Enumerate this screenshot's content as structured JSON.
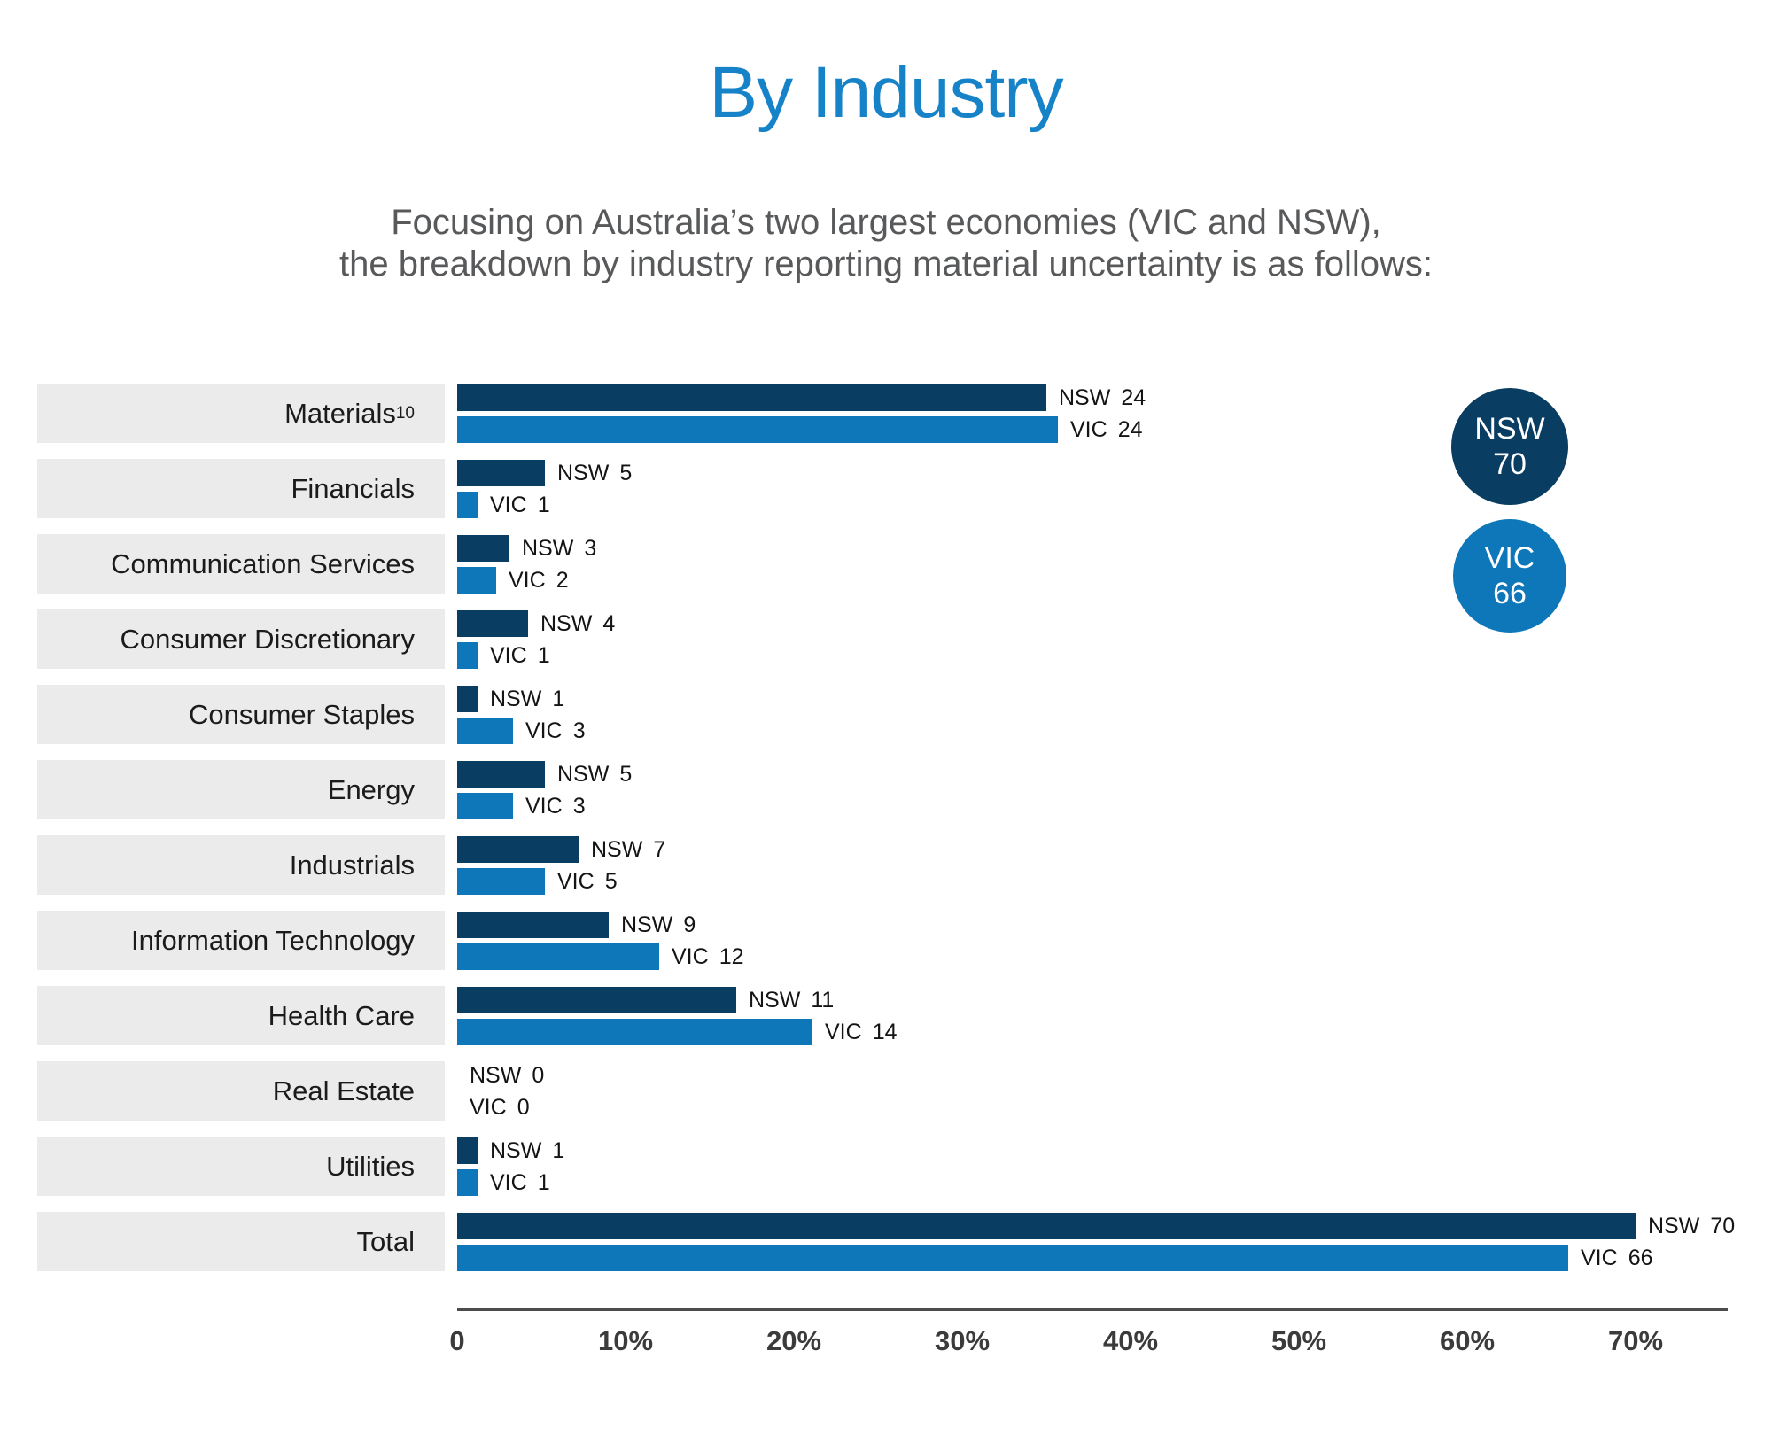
{
  "title": "By Industry",
  "subtitle_line1": "Focusing on Australia’s two largest economies (VIC and NSW),",
  "subtitle_line2": "the breakdown by industry reporting material uncertainty is as follows:",
  "legend": {
    "nsw_label": "NSW",
    "nsw_value": "70",
    "vic_label": "VIC",
    "vic_value": "66"
  },
  "colors": {
    "title_blue": "#1682c8",
    "nsw_navy": "#0a3d62",
    "vic_blue": "#0e77b9",
    "label_box_gray": "#ebebeb",
    "subtitle_gray": "#58595b",
    "axis_gray": "#4c4c4c"
  },
  "chart_data": {
    "type": "bar",
    "orientation": "horizontal",
    "title": "By Industry",
    "xlabel": "",
    "ylabel": "",
    "xlim": [
      0,
      70
    ],
    "x_ticks": [
      "0",
      "10%",
      "20%",
      "30%",
      "40%",
      "50%",
      "60%",
      "70%"
    ],
    "grid": false,
    "legend_position": "right",
    "series_names": [
      "NSW",
      "VIC"
    ],
    "state_totals": {
      "NSW": 70,
      "VIC": 66
    },
    "rows": [
      {
        "label": "Materials",
        "sup": "10",
        "nsw": 24,
        "vic": 24,
        "nsw_bar_pct": 35.0,
        "vic_bar_pct": 35.7
      },
      {
        "label": "Financials",
        "sup": "",
        "nsw": 5,
        "vic": 1,
        "nsw_bar_pct": 5.2,
        "vic_bar_pct": 1.2
      },
      {
        "label": "Communication Services",
        "sup": "",
        "nsw": 3,
        "vic": 2,
        "nsw_bar_pct": 3.1,
        "vic_bar_pct": 2.3
      },
      {
        "label": "Consumer Discretionary",
        "sup": "",
        "nsw": 4,
        "vic": 1,
        "nsw_bar_pct": 4.2,
        "vic_bar_pct": 1.2
      },
      {
        "label": "Consumer Staples",
        "sup": "",
        "nsw": 1,
        "vic": 3,
        "nsw_bar_pct": 1.2,
        "vic_bar_pct": 3.3
      },
      {
        "label": "Energy",
        "sup": "",
        "nsw": 5,
        "vic": 3,
        "nsw_bar_pct": 5.2,
        "vic_bar_pct": 3.3
      },
      {
        "label": "Industrials",
        "sup": "",
        "nsw": 7,
        "vic": 5,
        "nsw_bar_pct": 7.2,
        "vic_bar_pct": 5.2
      },
      {
        "label": "Information Technology",
        "sup": "",
        "nsw": 9,
        "vic": 12,
        "nsw_bar_pct": 9.0,
        "vic_bar_pct": 12.0
      },
      {
        "label": "Health Care",
        "sup": "",
        "nsw": 11,
        "vic": 14,
        "nsw_bar_pct": 16.6,
        "vic_bar_pct": 21.1
      },
      {
        "label": "Real Estate",
        "sup": "",
        "nsw": 0,
        "vic": 0,
        "nsw_bar_pct": 0,
        "vic_bar_pct": 0
      },
      {
        "label": "Utilities",
        "sup": "",
        "nsw": 1,
        "vic": 1,
        "nsw_bar_pct": 1.2,
        "vic_bar_pct": 1.2
      },
      {
        "label": "Total",
        "sup": "",
        "nsw": 70,
        "vic": 66,
        "nsw_bar_pct": 70.0,
        "vic_bar_pct": 66.0
      }
    ]
  }
}
